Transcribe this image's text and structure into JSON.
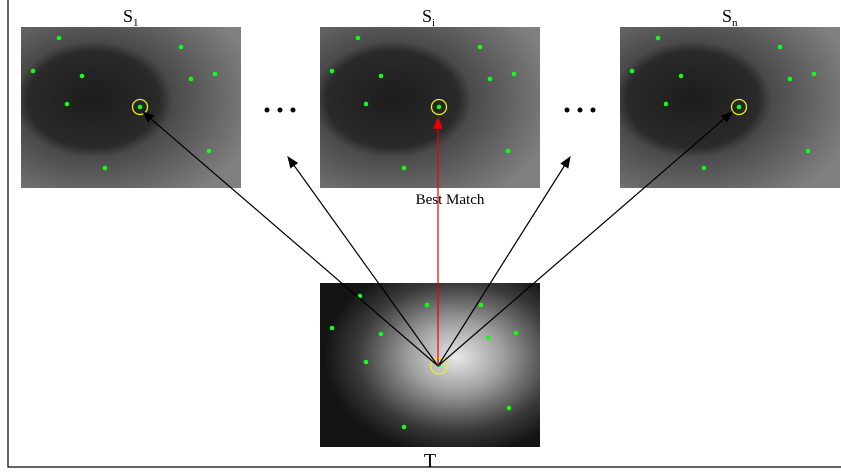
{
  "sources": [
    {
      "label": "S",
      "subscript": "1"
    },
    {
      "label": "S",
      "subscript": "i"
    },
    {
      "label": "S",
      "subscript": "n"
    }
  ],
  "annotation": "Best Match",
  "target": {
    "label": "T"
  }
}
